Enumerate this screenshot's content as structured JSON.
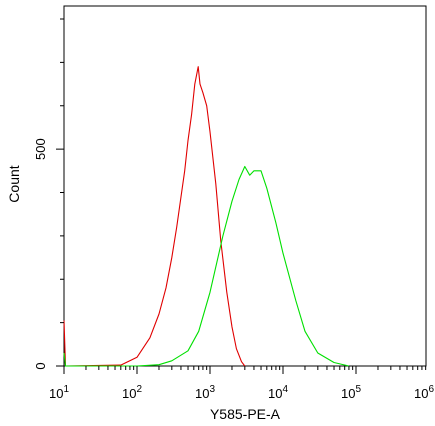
{
  "chart_data": {
    "type": "area",
    "xlabel": "Y585-PE-A",
    "ylabel": "Count",
    "xscale": "log",
    "xlim": [
      10,
      10000000
    ],
    "ylim": [
      0,
      830
    ],
    "grid": false,
    "legend": "none",
    "x_tick_labels": [
      "10^1",
      "10^2",
      "10^3",
      "10^4",
      "10^5",
      "10^6"
    ],
    "y_tick_labels": [
      {
        "value": 0,
        "label": "0"
      },
      {
        "value": 500,
        "label": "500"
      }
    ],
    "series": [
      {
        "color": "#e00000",
        "points": [
          [
            10,
            105
          ],
          [
            10.5,
            0
          ],
          [
            60,
            2
          ],
          [
            100,
            20
          ],
          [
            150,
            65
          ],
          [
            200,
            120
          ],
          [
            250,
            180
          ],
          [
            300,
            250
          ],
          [
            350,
            320
          ],
          [
            400,
            390
          ],
          [
            450,
            450
          ],
          [
            500,
            520
          ],
          [
            560,
            580
          ],
          [
            620,
            650
          ],
          [
            690,
            690
          ],
          [
            730,
            650
          ],
          [
            800,
            630
          ],
          [
            900,
            600
          ],
          [
            1000,
            540
          ],
          [
            1200,
            420
          ],
          [
            1400,
            290
          ],
          [
            1700,
            170
          ],
          [
            2000,
            90
          ],
          [
            2300,
            40
          ],
          [
            2700,
            10
          ],
          [
            3000,
            0
          ]
        ]
      },
      {
        "color": "#00e000",
        "points": [
          [
            10,
            30
          ],
          [
            10.5,
            0
          ],
          [
            100,
            0
          ],
          [
            200,
            3
          ],
          [
            300,
            12
          ],
          [
            500,
            35
          ],
          [
            700,
            80
          ],
          [
            1000,
            170
          ],
          [
            1500,
            300
          ],
          [
            2000,
            380
          ],
          [
            2500,
            430
          ],
          [
            3000,
            460
          ],
          [
            3500,
            440
          ],
          [
            4000,
            450
          ],
          [
            5000,
            450
          ],
          [
            6000,
            410
          ],
          [
            8000,
            330
          ],
          [
            10000,
            260
          ],
          [
            15000,
            150
          ],
          [
            20000,
            80
          ],
          [
            30000,
            30
          ],
          [
            50000,
            8
          ],
          [
            80000,
            0
          ]
        ]
      }
    ]
  }
}
